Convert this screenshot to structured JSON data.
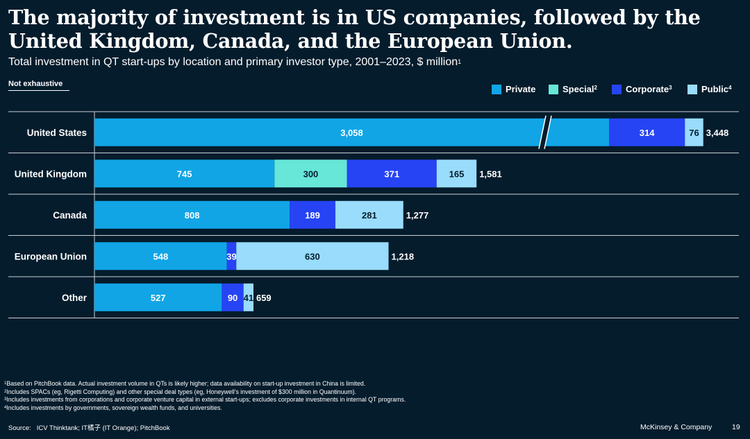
{
  "header": {
    "title": "The majority of investment is in US companies, followed by the United Kingdom, Canada, and the European Union.",
    "subtitle": "Total investment in QT start-ups by location and primary investor type, 2001–2023, $ million",
    "subtitle_note": "1",
    "note": "Not exhaustive"
  },
  "chart_data": {
    "type": "bar",
    "orientation": "horizontal",
    "stacked": true,
    "categories": [
      "United States",
      "United Kingdom",
      "Canada",
      "European Union",
      "Other"
    ],
    "series": [
      {
        "name": "Private",
        "sup": "",
        "color": "#11a5e6",
        "values": [
          3058,
          745,
          808,
          548,
          527
        ]
      },
      {
        "name": "Special",
        "sup": "2",
        "color": "#66e7d8",
        "values": [
          0,
          300,
          0,
          0,
          0
        ]
      },
      {
        "name": "Corporate",
        "sup": "3",
        "color": "#2644f4",
        "values": [
          314,
          371,
          189,
          39,
          90
        ]
      },
      {
        "name": "Public",
        "sup": "4",
        "color": "#99dcfc",
        "values": [
          76,
          165,
          281,
          630,
          41
        ]
      }
    ],
    "totals": [
      3448,
      1581,
      1277,
      1218,
      659
    ],
    "value_labels": [
      [
        "3,058",
        "",
        "314",
        "76"
      ],
      [
        "745",
        "300",
        "371",
        "165"
      ],
      [
        "808",
        "",
        "189",
        "281"
      ],
      [
        "548",
        "",
        "39",
        "630"
      ],
      [
        "527",
        "",
        "90",
        "41"
      ]
    ],
    "total_labels": [
      "3,448",
      "1,581",
      "1,277",
      "1,218",
      "659"
    ],
    "axis_break": {
      "category": "United States",
      "series": "Private"
    },
    "legend_position": "top-right",
    "grid": false
  },
  "footnotes": [
    {
      "sup": "1",
      "text": "Based on PitchBook data. Actual investment volume in QTs is likely higher; data availability on start-up investment in China is limited."
    },
    {
      "sup": "2",
      "text": "Includes SPACs (eg, Rigetti Computing) and other special deal types (eg, Honeywell's investment of $300 million in Quantinuum)."
    },
    {
      "sup": "3",
      "text": "Includes investments from corporations and corporate venture capital in external start-ups; excludes corporate investments in internal QT programs."
    },
    {
      "sup": "4",
      "text": "Includes investments by governments, sovereign wealth funds, and universities."
    }
  ],
  "source": {
    "label": "Source:",
    "text": "ICV Thinktank; IT橘子 (IT Orange); PitchBook"
  },
  "brand": "McKinsey & Company",
  "page_number": "19"
}
